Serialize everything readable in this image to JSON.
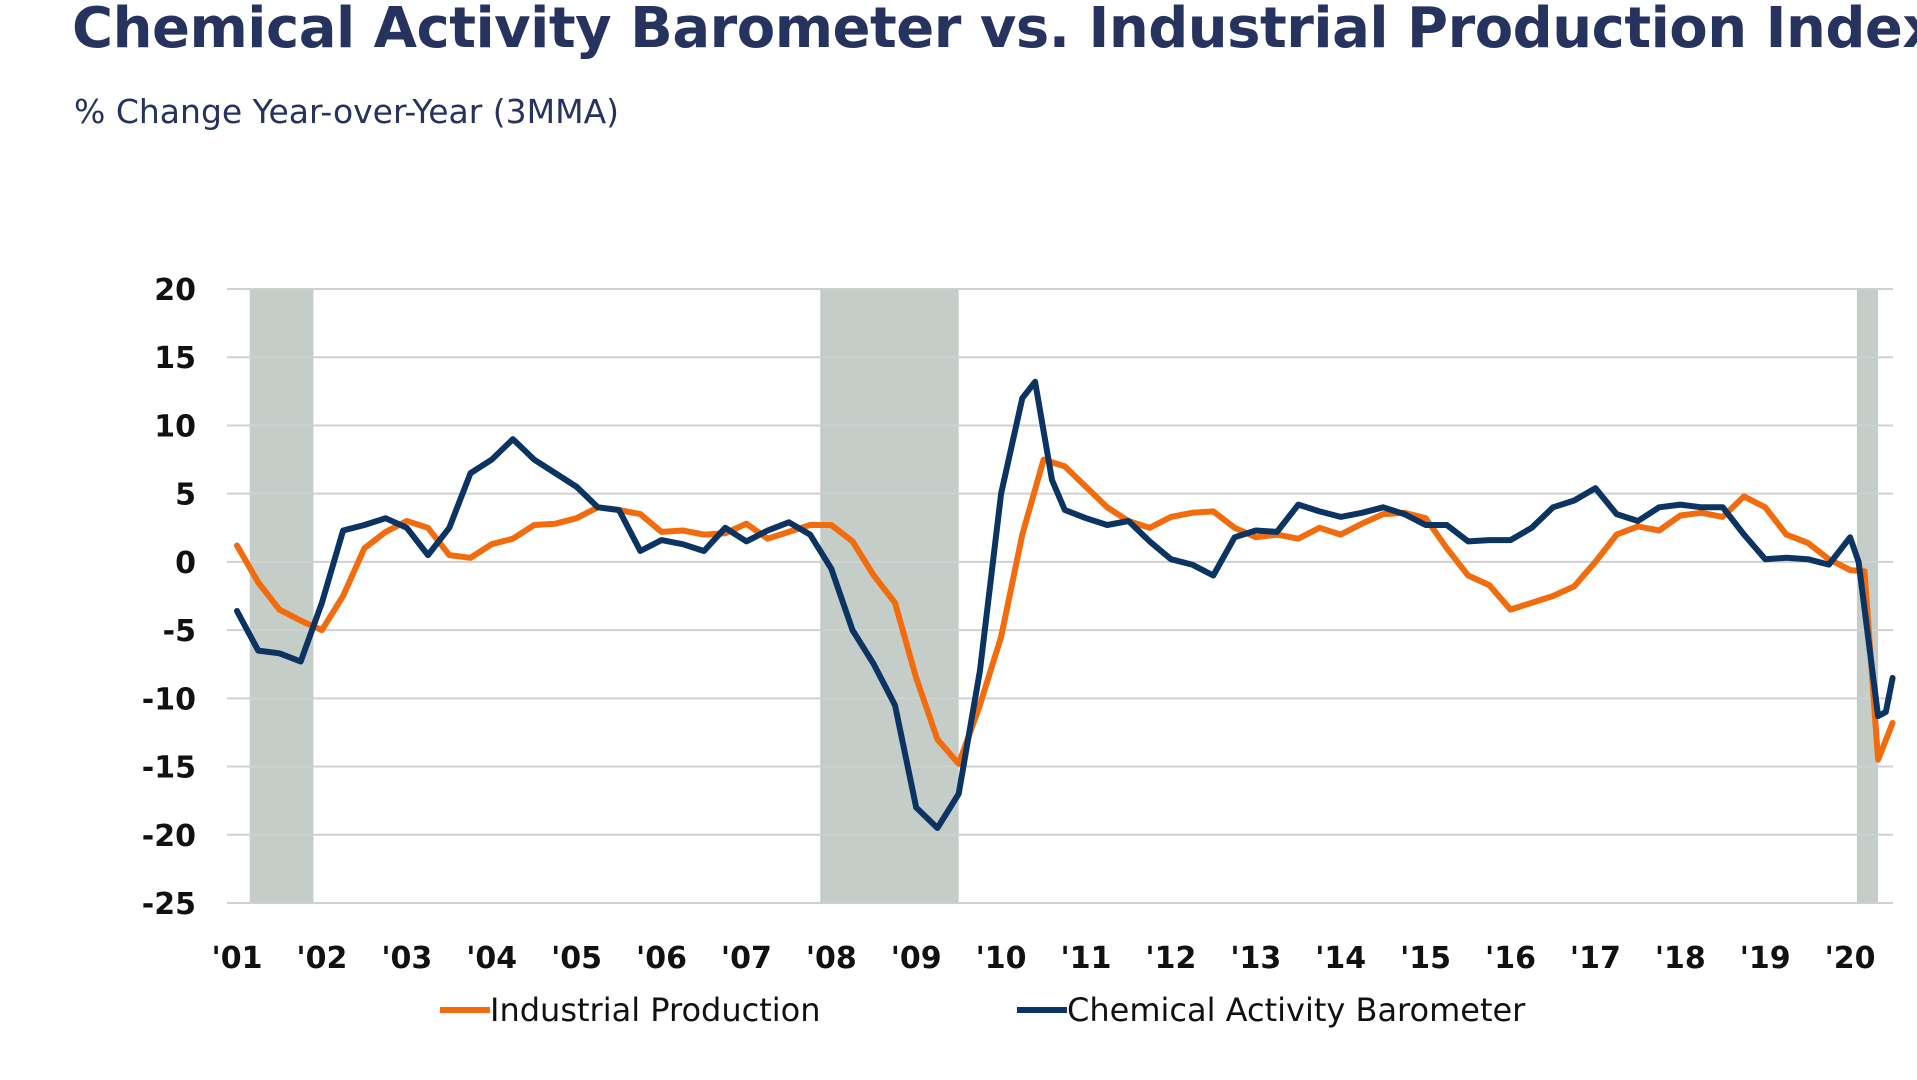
{
  "chart_data": {
    "type": "line",
    "title": "Chemical Activity Barometer vs. Industrial Production Index",
    "subtitle": "% Change Year-over-Year (3MMA)",
    "xlabel": "",
    "ylabel": "",
    "ylim": [
      -25,
      20
    ],
    "yticks": [
      "20",
      "15",
      "10",
      "5",
      "0",
      "-5",
      "-10",
      "-15",
      "-20",
      "-25"
    ],
    "xticks": [
      "'01",
      "'02",
      "'03",
      "'04",
      "'05",
      "'06",
      "'07",
      "'08",
      "'09",
      "'10",
      "'11",
      "'12",
      "'13",
      "'14",
      "'15",
      "'16",
      "'17",
      "'18",
      "'19",
      "'20"
    ],
    "xlim": [
      2001,
      2020.5
    ],
    "grid": "horizontal",
    "legend_position": "bottom",
    "recessions": [
      [
        2001.15,
        2001.9
      ],
      [
        2007.87,
        2009.5
      ],
      [
        2020.08,
        2020.33
      ]
    ],
    "series": [
      {
        "name": "Industrial Production",
        "color": "#f26c0d",
        "x": [
          2001.0,
          2001.25,
          2001.5,
          2001.75,
          2002.0,
          2002.25,
          2002.5,
          2002.75,
          2003.0,
          2003.25,
          2003.5,
          2003.75,
          2004.0,
          2004.25,
          2004.5,
          2004.75,
          2005.0,
          2005.25,
          2005.5,
          2005.75,
          2006.0,
          2006.25,
          2006.5,
          2006.75,
          2007.0,
          2007.25,
          2007.5,
          2007.75,
          2008.0,
          2008.25,
          2008.5,
          2008.75,
          2009.0,
          2009.25,
          2009.5,
          2009.75,
          2010.0,
          2010.25,
          2010.5,
          2010.75,
          2011.0,
          2011.25,
          2011.5,
          2011.75,
          2012.0,
          2012.25,
          2012.5,
          2012.75,
          2013.0,
          2013.25,
          2013.5,
          2013.75,
          2014.0,
          2014.25,
          2014.5,
          2014.75,
          2015.0,
          2015.25,
          2015.5,
          2015.75,
          2016.0,
          2016.25,
          2016.5,
          2016.75,
          2017.0,
          2017.25,
          2017.5,
          2017.75,
          2018.0,
          2018.25,
          2018.5,
          2018.75,
          2019.0,
          2019.25,
          2019.5,
          2019.75,
          2020.0,
          2020.17,
          2020.33,
          2020.5
        ],
        "values": [
          1.2,
          -1.5,
          -3.5,
          -4.3,
          -5.0,
          -2.5,
          1.0,
          2.2,
          3.0,
          2.5,
          0.5,
          0.3,
          1.3,
          1.7,
          2.7,
          2.8,
          3.2,
          4.0,
          3.8,
          3.5,
          2.2,
          2.3,
          2.0,
          2.1,
          2.8,
          1.7,
          2.2,
          2.7,
          2.7,
          1.5,
          -1.0,
          -3.0,
          -8.5,
          -13.0,
          -14.8,
          -10.5,
          -5.5,
          2.0,
          7.5,
          7.0,
          5.5,
          4.0,
          3.0,
          2.5,
          3.3,
          3.6,
          3.7,
          2.5,
          1.8,
          2.0,
          1.7,
          2.5,
          2.0,
          2.8,
          3.5,
          3.6,
          3.2,
          1.0,
          -1.0,
          -1.7,
          -3.5,
          -3.0,
          -2.5,
          -1.8,
          0.0,
          2.0,
          2.6,
          2.3,
          3.4,
          3.6,
          3.3,
          4.8,
          4.0,
          2.0,
          1.4,
          0.2,
          -0.6,
          -0.7,
          -14.5,
          -11.8
        ]
      },
      {
        "name": "Chemical Activity Barometer",
        "color": "#0b3462",
        "x": [
          2001.0,
          2001.25,
          2001.5,
          2001.75,
          2002.0,
          2002.25,
          2002.5,
          2002.75,
          2003.0,
          2003.25,
          2003.5,
          2003.75,
          2004.0,
          2004.25,
          2004.5,
          2004.75,
          2005.0,
          2005.25,
          2005.5,
          2005.75,
          2006.0,
          2006.25,
          2006.5,
          2006.75,
          2007.0,
          2007.25,
          2007.5,
          2007.75,
          2008.0,
          2008.25,
          2008.5,
          2008.75,
          2009.0,
          2009.25,
          2009.5,
          2009.75,
          2010.0,
          2010.25,
          2010.4,
          2010.6,
          2010.75,
          2011.0,
          2011.25,
          2011.5,
          2011.75,
          2012.0,
          2012.25,
          2012.5,
          2012.75,
          2013.0,
          2013.25,
          2013.5,
          2013.75,
          2014.0,
          2014.25,
          2014.5,
          2014.75,
          2015.0,
          2015.25,
          2015.5,
          2015.75,
          2016.0,
          2016.25,
          2016.5,
          2016.75,
          2017.0,
          2017.25,
          2017.5,
          2017.75,
          2018.0,
          2018.25,
          2018.5,
          2018.75,
          2019.0,
          2019.25,
          2019.5,
          2019.75,
          2020.0,
          2020.1,
          2020.33,
          2020.42,
          2020.5
        ],
        "values": [
          -3.6,
          -6.5,
          -6.7,
          -7.3,
          -3.0,
          2.3,
          2.7,
          3.2,
          2.5,
          0.5,
          2.5,
          6.5,
          7.5,
          9.0,
          7.5,
          6.5,
          5.5,
          4.0,
          3.8,
          0.8,
          1.6,
          1.3,
          0.8,
          2.5,
          1.5,
          2.3,
          2.9,
          2.0,
          -0.5,
          -5.0,
          -7.5,
          -10.5,
          -18.0,
          -19.5,
          -17.0,
          -8.0,
          5.0,
          12.0,
          13.2,
          6.0,
          3.8,
          3.2,
          2.7,
          3.0,
          1.5,
          0.2,
          -0.2,
          -1.0,
          1.8,
          2.3,
          2.2,
          4.2,
          3.7,
          3.3,
          3.6,
          4.0,
          3.5,
          2.7,
          2.7,
          1.5,
          1.6,
          1.6,
          2.5,
          4.0,
          4.5,
          5.4,
          3.5,
          3.0,
          4.0,
          4.2,
          4.0,
          4.0,
          2.0,
          0.2,
          0.3,
          0.2,
          -0.2,
          1.8,
          0.0,
          -11.3,
          -11.0,
          -8.5
        ]
      }
    ]
  }
}
